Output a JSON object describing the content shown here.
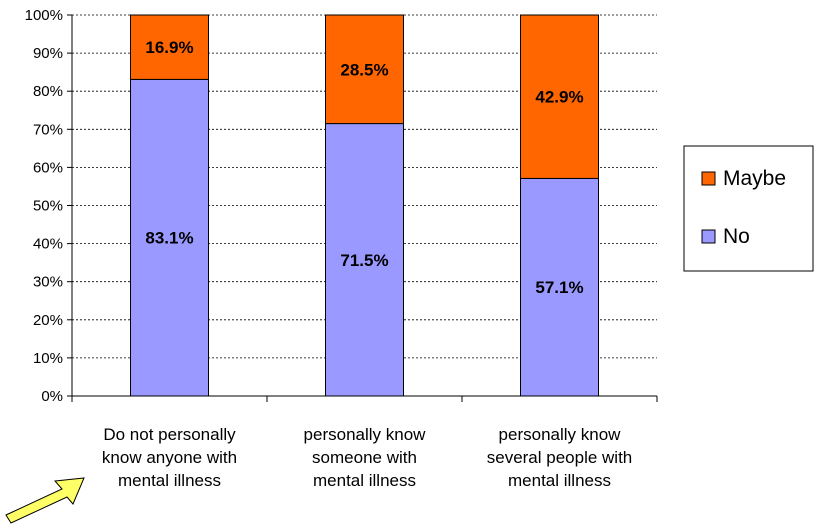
{
  "chart_data": {
    "type": "bar",
    "stacked": true,
    "percent_stacked": true,
    "categories": [
      [
        "Do not personally",
        "know anyone with",
        "mental illness"
      ],
      [
        "personally know",
        "someone with",
        "mental illness"
      ],
      [
        "personally know",
        "several people with",
        "mental illness"
      ]
    ],
    "series": [
      {
        "name": "No",
        "values": [
          83.1,
          71.5,
          57.1
        ],
        "labels": [
          "83.1%",
          "71.5%",
          "57.1%"
        ],
        "color": "#9999ff"
      },
      {
        "name": "Maybe",
        "values": [
          16.9,
          28.5,
          42.9
        ],
        "labels": [
          "16.9%",
          "28.5%",
          "42.9%"
        ],
        "color": "#ff6600"
      }
    ],
    "yticks": [
      "0%",
      "10%",
      "20%",
      "30%",
      "40%",
      "50%",
      "60%",
      "70%",
      "80%",
      "90%",
      "100%"
    ],
    "ylim": [
      0,
      100
    ],
    "grid": true,
    "legend": {
      "position": "right",
      "order": [
        "Maybe",
        "No"
      ]
    },
    "title": "",
    "xlabel": "",
    "ylabel": ""
  },
  "colors": {
    "no": "#9999ff",
    "maybe": "#ff6600",
    "arrow": "#ffff66"
  },
  "annotation": {
    "icon": "arrow-icon"
  }
}
